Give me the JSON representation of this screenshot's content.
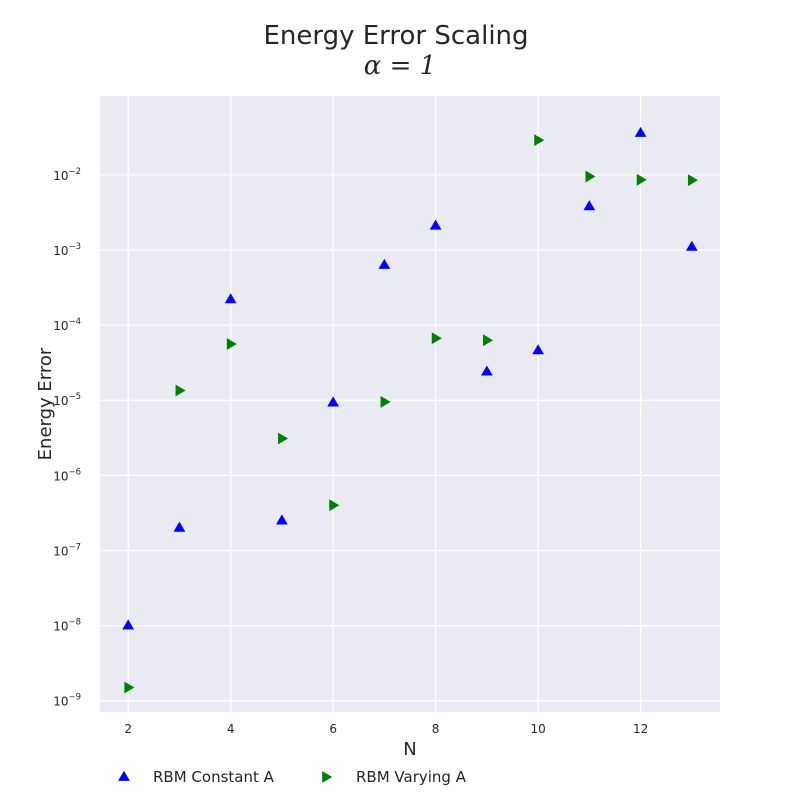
{
  "chart_data": {
    "type": "scatter",
    "title": "Energy Error Scaling",
    "subtitle": "α = 1",
    "xlabel": "N",
    "ylabel": "Energy Error",
    "xlim": [
      1.45,
      13.55
    ],
    "ylim_log10": [
      -9.15,
      -0.95
    ],
    "yscale": "log",
    "x_ticks": [
      2,
      4,
      6,
      8,
      10,
      12
    ],
    "y_ticks": [
      {
        "base": "10",
        "exp": "−9",
        "log": -9
      },
      {
        "base": "10",
        "exp": "−8",
        "log": -8
      },
      {
        "base": "10",
        "exp": "−7",
        "log": -7
      },
      {
        "base": "10",
        "exp": "−6",
        "log": -6
      },
      {
        "base": "10",
        "exp": "−5",
        "log": -5
      },
      {
        "base": "10",
        "exp": "−4",
        "log": -4
      },
      {
        "base": "10",
        "exp": "−3",
        "log": -3
      },
      {
        "base": "10",
        "exp": "−2",
        "log": -2
      }
    ],
    "grid": true,
    "legend_position": "bottom",
    "series": [
      {
        "name": "RBM Constant A",
        "marker": "triangle-up",
        "color": "#0000ff",
        "x": [
          2,
          3,
          4,
          5,
          6,
          7,
          8,
          9,
          10,
          11,
          12,
          13
        ],
        "y": [
          1e-08,
          2e-07,
          0.00022,
          2.5e-07,
          9.3e-06,
          0.00063,
          0.0021,
          2.4e-05,
          4.6e-05,
          0.0038,
          0.036,
          0.0011
        ]
      },
      {
        "name": "RBM Varying A",
        "marker": "triangle-right",
        "color": "#008000",
        "x": [
          2,
          3,
          4,
          5,
          6,
          7,
          8,
          9,
          10,
          11,
          12,
          13
        ],
        "y": [
          1.5e-09,
          1.35e-05,
          5.6e-05,
          3.1e-06,
          4e-07,
          9.5e-06,
          6.7e-05,
          6.3e-05,
          0.029,
          0.0095,
          0.0086,
          0.0085
        ]
      }
    ]
  },
  "colors": {
    "plot_background": "#eaeaf2",
    "grid": "#ffffff",
    "text": "#262626"
  }
}
